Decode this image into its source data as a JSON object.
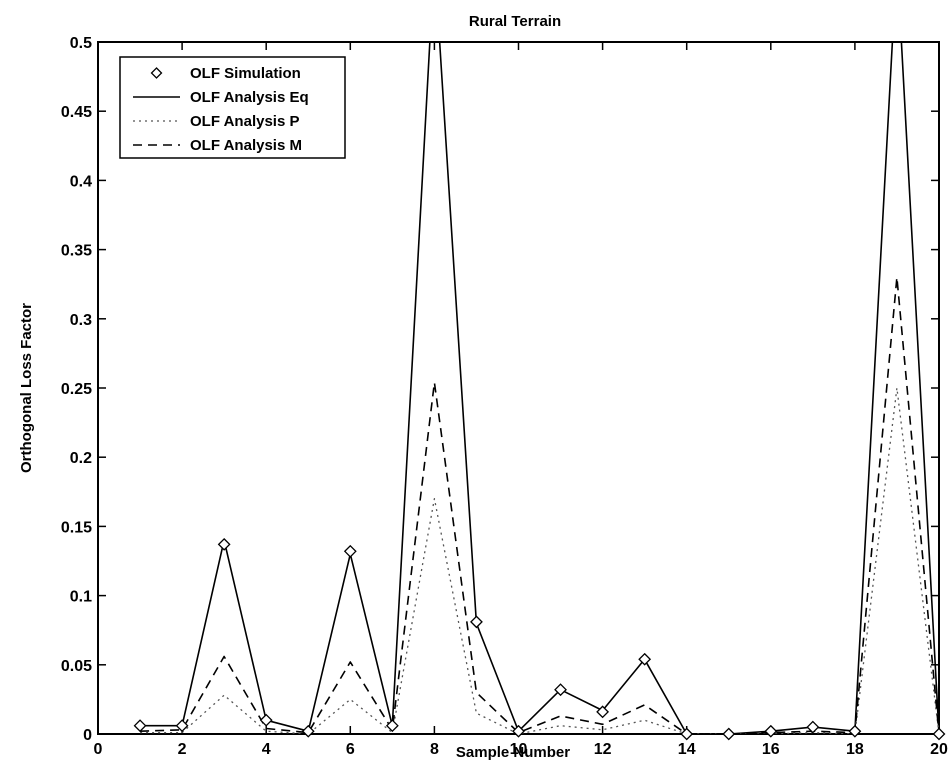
{
  "chart_data": {
    "type": "line",
    "title": "Rural Terrain",
    "xlabel": "Sample Number",
    "ylabel": "Orthogonal Loss Factor",
    "xlim": [
      0,
      20
    ],
    "ylim": [
      0,
      0.5
    ],
    "xticks": [
      "0",
      "2",
      "4",
      "6",
      "8",
      "10",
      "12",
      "14",
      "16",
      "18",
      "20"
    ],
    "yticks": [
      "0",
      "0.05",
      "0.1",
      "0.15",
      "0.2",
      "0.25",
      "0.3",
      "0.35",
      "0.4",
      "0.45",
      "0.5"
    ],
    "grid": false,
    "legend_position": "top-left",
    "x": [
      1,
      2,
      3,
      4,
      5,
      6,
      7,
      8,
      9,
      10,
      11,
      12,
      13,
      14,
      15,
      16,
      17,
      18,
      19,
      20
    ],
    "series": [
      {
        "name": "OLF Simulation",
        "style": "markers",
        "marker": "diamond",
        "values": [
          0.006,
          0.006,
          0.137,
          0.01,
          0.002,
          0.132,
          0.006,
          null,
          0.081,
          0.002,
          0.032,
          0.016,
          0.054,
          0.0,
          0.0,
          0.002,
          0.005,
          0.002,
          null,
          0.0
        ]
      },
      {
        "name": "OLF Analysis Eq",
        "style": "solid",
        "values": [
          0.006,
          0.006,
          0.14,
          0.01,
          0.002,
          0.13,
          0.006,
          0.56,
          0.08,
          0.002,
          0.032,
          0.017,
          0.054,
          0.0,
          0.0,
          0.002,
          0.005,
          0.002,
          0.56,
          0.0
        ]
      },
      {
        "name": "OLF Analysis P",
        "style": "dotted",
        "values": [
          0.001,
          0.001,
          0.028,
          0.002,
          0.0,
          0.025,
          0.001,
          0.17,
          0.015,
          0.0,
          0.006,
          0.003,
          0.01,
          0.0,
          0.0,
          0.0,
          0.001,
          0.0,
          0.25,
          0.0
        ]
      },
      {
        "name": "OLF Analysis M",
        "style": "dashed",
        "values": [
          0.002,
          0.003,
          0.056,
          0.004,
          0.001,
          0.052,
          0.003,
          0.254,
          0.03,
          0.001,
          0.013,
          0.007,
          0.021,
          0.0,
          0.0,
          0.001,
          0.002,
          0.001,
          0.33,
          0.0
        ]
      }
    ]
  }
}
